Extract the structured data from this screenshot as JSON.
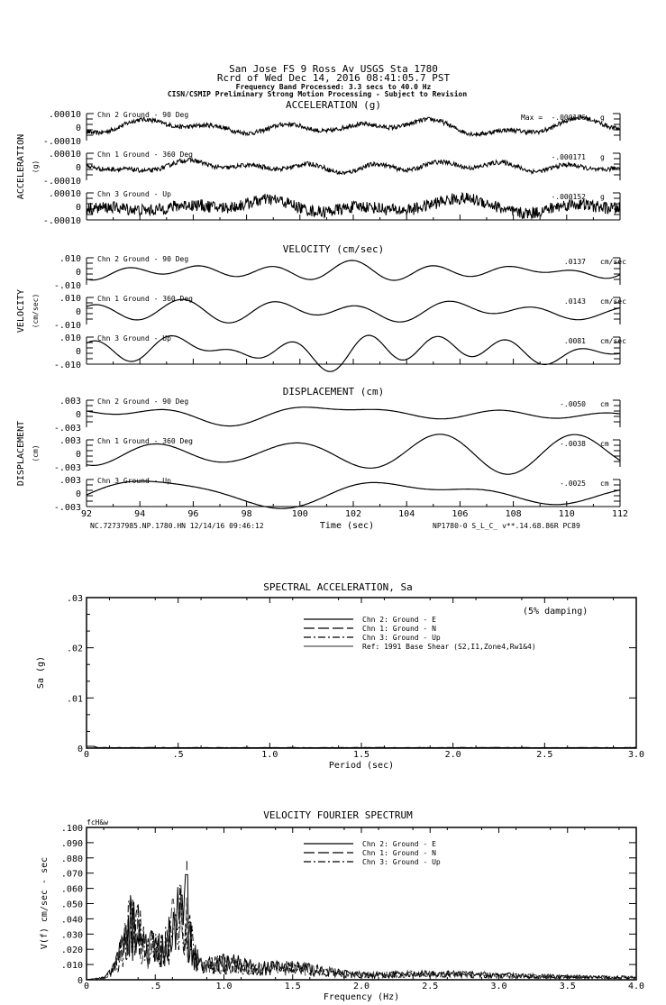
{
  "header": {
    "line1": "San Jose FS 9 Ross Av    USGS Sta 1780",
    "line2": "Rcrd of Wed Dec 14, 2016 08:41:05.7 PST",
    "line3": "Frequency Band Processed: 3.3 secs to 40.0 Hz",
    "line4": "CISN/CSMIP Preliminary Strong Motion Processing - Subject to Revision"
  },
  "footer": {
    "left": "NC.72737985.NP.1780.HN 12/14/16 09:46:12",
    "right": "NP1780-0  S_L_C_  v**.14.68.86R PC89"
  },
  "chart_data": [
    {
      "type": "line",
      "title": "ACCELERATION (g)",
      "ylabel": "ACCELERATION",
      "yunit": "(g)",
      "xlim": [
        92,
        112
      ],
      "ylim": [
        -0.0001,
        0.0001
      ],
      "ytick_labels": [
        ".00010",
        "0",
        "-.00010"
      ],
      "max_prefix": "Max =",
      "series": [
        {
          "name": "Chn 2  Ground - 90 Deg",
          "max": "-.000106",
          "unit": "g"
        },
        {
          "name": "Chn 1  Ground - 360 Deg",
          "max": "-.000171",
          "unit": "g"
        },
        {
          "name": "Chn 3  Ground - Up",
          "max": "-.000152",
          "unit": "g"
        }
      ]
    },
    {
      "type": "line",
      "title": "VELOCITY (cm/sec)",
      "ylabel": "VELOCITY",
      "yunit": "(cm/sec)",
      "xlim": [
        92,
        112
      ],
      "ylim": [
        -0.01,
        0.01
      ],
      "ytick_labels": [
        ".010",
        "0",
        "-.010"
      ],
      "series": [
        {
          "name": "Chn 2  Ground - 90 Deg",
          "max": ".0137",
          "unit": "cm/sec"
        },
        {
          "name": "Chn 1  Ground - 360 Deg",
          "max": ".0143",
          "unit": "cm/sec"
        },
        {
          "name": "Chn 3  Ground - Up",
          "max": ".0081",
          "unit": "cm/sec"
        }
      ]
    },
    {
      "type": "line",
      "title": "DISPLACEMENT (cm)",
      "ylabel": "DISPLACEMENT",
      "yunit": "(cm)",
      "xlim": [
        92,
        112
      ],
      "ylim": [
        -0.003,
        0.003
      ],
      "ytick_labels": [
        ".003",
        "0",
        "-.003"
      ],
      "xlabel": "Time (sec)",
      "xtick_labels": [
        "92",
        "94",
        "96",
        "98",
        "100",
        "102",
        "104",
        "106",
        "108",
        "110",
        "112"
      ],
      "series": [
        {
          "name": "Chn 2  Ground - 90 Deg",
          "max": "-.0050",
          "unit": "cm"
        },
        {
          "name": "Chn 1  Ground - 360 Deg",
          "max": "-.0038",
          "unit": "cm"
        },
        {
          "name": "Chn 3  Ground - Up",
          "max": "-.0025",
          "unit": "cm"
        }
      ]
    },
    {
      "type": "line",
      "title": "SPECTRAL ACCELERATION, Sa",
      "xlabel": "Period (sec)",
      "ylabel": "Sa (g)",
      "xlim": [
        0,
        3.0
      ],
      "ylim": [
        0,
        0.03
      ],
      "xtick_labels": [
        "0",
        ".5",
        "1.0",
        "1.5",
        "2.0",
        "2.5",
        "3.0"
      ],
      "ytick_labels": [
        ".03",
        ".02",
        ".01",
        "0"
      ],
      "annotation": "(5% damping)",
      "legend": [
        "Chn 2: Ground - E",
        "Chn 1: Ground - N",
        "Chn 3: Ground - Up",
        "Ref: 1991 Base Shear (S2,I1,Zone4,Rw1&4)"
      ],
      "legend_position": "top-center",
      "series_note": "all values near 0 (< 0.001 g)"
    },
    {
      "type": "line",
      "title": "VELOCITY FOURIER SPECTRUM",
      "xlabel": "Frequency (Hz)",
      "ylabel": "V(f)   cm/sec - sec",
      "xlim": [
        0,
        4.0
      ],
      "ylim": [
        0,
        0.1
      ],
      "xtick_labels": [
        "0",
        ".5",
        "1.0",
        "1.5",
        "2.0",
        "2.5",
        "3.0",
        "3.5",
        "4.0"
      ],
      "ytick_labels": [
        ".100",
        ".090",
        ".080",
        ".070",
        ".060",
        ".050",
        ".040",
        ".030",
        ".020",
        ".010",
        "0"
      ],
      "corner_label": "fcH&w",
      "legend": [
        "Chn 2: Ground - E",
        "Chn 1: Ground - N",
        "Chn 3: Ground - Up"
      ],
      "legend_position": "top-center",
      "peak": {
        "frequency": 0.73,
        "value": 0.069
      },
      "secondary_peaks": [
        {
          "frequency": 0.3,
          "value": 0.054
        },
        {
          "frequency": 0.35,
          "value": 0.054
        },
        {
          "frequency": 0.62,
          "value": 0.055
        }
      ]
    }
  ]
}
